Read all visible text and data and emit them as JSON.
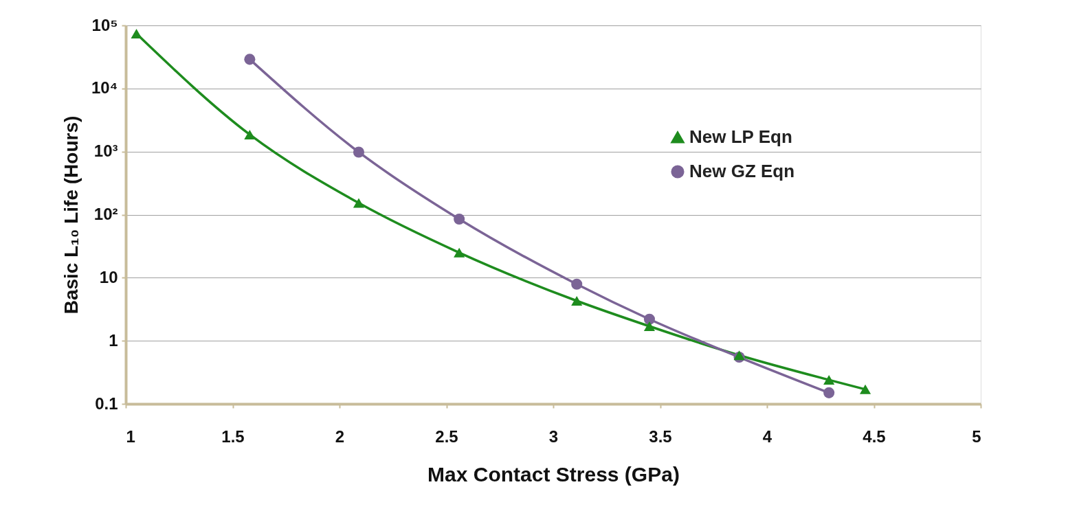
{
  "chart_data": {
    "type": "line",
    "xlabel": "Max Contact Stress (GPa)",
    "ylabel": "Basic L₁₀ Life (Hours)",
    "log": "y",
    "grid": "y",
    "legend": "top right",
    "line_style": "solid",
    "xlim": [
      1,
      5
    ],
    "xticks": [
      1,
      1.5,
      2,
      2.5,
      3,
      3.5,
      4,
      4.5,
      5
    ],
    "ylim": [
      0.1,
      100000
    ],
    "yticks": [
      0.1,
      1,
      10,
      {
        "value": 100,
        "label": "10²"
      },
      {
        "value": 1000,
        "label": "10³"
      },
      {
        "value": 10000,
        "label": "10⁴"
      },
      {
        "value": 100000,
        "label": "10⁵"
      }
    ],
    "series": [
      {
        "name": "New LP Eqn",
        "color": "#1e8c1e",
        "marker": "triangle",
        "x": [
          1.05,
          1.58,
          2.09,
          2.56,
          3.11,
          3.45,
          3.87,
          4.29,
          4.46
        ],
        "values": [
          74000,
          1860,
          153,
          25,
          4.3,
          1.7,
          0.59,
          0.24,
          0.17
        ]
      },
      {
        "name": "New GZ Eqn",
        "color": "#7b6496",
        "marker": "circle",
        "x": [
          1.58,
          2.09,
          2.56,
          3.11,
          3.45,
          3.87,
          4.29
        ],
        "values": [
          29000,
          980,
          85,
          7.9,
          2.2,
          0.55,
          0.15
        ]
      }
    ]
  }
}
